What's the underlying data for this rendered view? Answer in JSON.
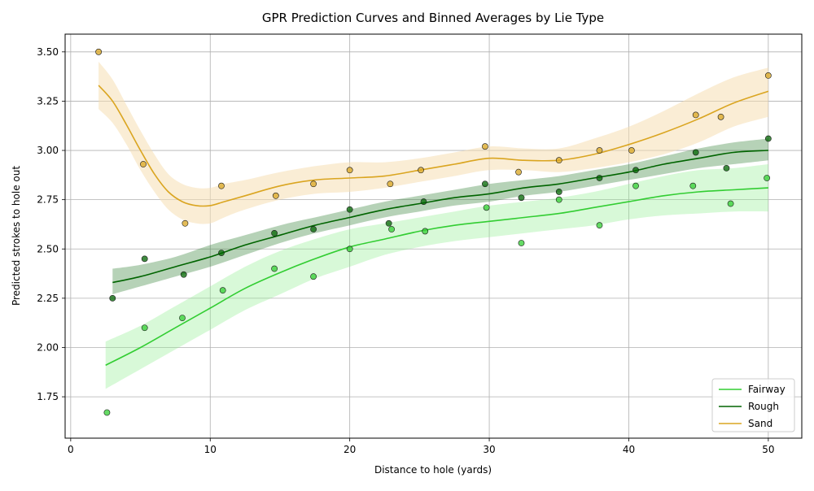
{
  "chart_data": {
    "type": "line",
    "title": "GPR Prediction Curves and Binned Averages by Lie Type",
    "xlabel": "Distance to hole (yards)",
    "ylabel": "Predicted strokes to hole out",
    "xlim": [
      -0.4,
      52.4
    ],
    "ylim": [
      1.54,
      3.59
    ],
    "xticks": [
      0,
      10,
      20,
      30,
      40,
      50
    ],
    "yticks": [
      1.75,
      2.0,
      2.25,
      2.5,
      2.75,
      3.0,
      3.25,
      3.5
    ],
    "grid": true,
    "legend_position": "bottom-right",
    "series": [
      {
        "name": "Fairway",
        "color": "#32cd32",
        "band_color": "#90ee90",
        "curve": {
          "x": [
            2.5,
            5,
            7.5,
            10,
            12.5,
            15,
            17.5,
            20,
            22.5,
            25,
            27.5,
            30,
            32.5,
            35,
            37.5,
            40,
            42.5,
            45,
            47.5,
            50
          ],
          "mean": [
            1.91,
            2.0,
            2.1,
            2.2,
            2.3,
            2.38,
            2.45,
            2.51,
            2.55,
            2.59,
            2.62,
            2.64,
            2.66,
            2.68,
            2.71,
            2.74,
            2.77,
            2.79,
            2.8,
            2.81
          ],
          "lower": [
            1.79,
            1.89,
            1.99,
            2.09,
            2.19,
            2.27,
            2.35,
            2.41,
            2.47,
            2.51,
            2.54,
            2.56,
            2.58,
            2.6,
            2.62,
            2.65,
            2.67,
            2.68,
            2.69,
            2.69
          ],
          "upper": [
            2.03,
            2.11,
            2.21,
            2.31,
            2.41,
            2.49,
            2.55,
            2.6,
            2.63,
            2.66,
            2.69,
            2.72,
            2.74,
            2.76,
            2.79,
            2.83,
            2.87,
            2.9,
            2.91,
            2.93
          ]
        },
        "points": {
          "x": [
            2.6,
            5.3,
            8.0,
            10.9,
            14.6,
            17.4,
            20.0,
            23.0,
            25.4,
            29.8,
            32.3,
            35.0,
            37.9,
            40.5,
            44.6,
            47.3,
            49.9
          ],
          "y": [
            1.67,
            2.1,
            2.15,
            2.29,
            2.4,
            2.36,
            2.5,
            2.6,
            2.59,
            2.71,
            2.53,
            2.75,
            2.62,
            2.82,
            2.82,
            2.73,
            2.86
          ]
        }
      },
      {
        "name": "Rough",
        "color": "#006400",
        "band_color": "#2e7d32",
        "curve": {
          "x": [
            3,
            5,
            7.5,
            10,
            12.5,
            15,
            17.5,
            20,
            22.5,
            25,
            27.5,
            30,
            32.5,
            35,
            37.5,
            40,
            42.5,
            45,
            47.5,
            50
          ],
          "mean": [
            2.33,
            2.36,
            2.41,
            2.46,
            2.52,
            2.57,
            2.62,
            2.66,
            2.7,
            2.73,
            2.76,
            2.78,
            2.81,
            2.83,
            2.86,
            2.89,
            2.93,
            2.96,
            2.99,
            3.0
          ],
          "lower": [
            2.27,
            2.31,
            2.36,
            2.41,
            2.47,
            2.53,
            2.58,
            2.62,
            2.66,
            2.69,
            2.72,
            2.74,
            2.77,
            2.79,
            2.82,
            2.85,
            2.88,
            2.91,
            2.93,
            2.95
          ],
          "upper": [
            2.4,
            2.42,
            2.46,
            2.52,
            2.57,
            2.62,
            2.66,
            2.7,
            2.74,
            2.77,
            2.8,
            2.83,
            2.85,
            2.87,
            2.9,
            2.93,
            2.97,
            3.01,
            3.04,
            3.06
          ]
        },
        "points": {
          "x": [
            3.0,
            5.3,
            8.1,
            10.8,
            14.6,
            17.4,
            20.0,
            22.8,
            25.3,
            29.7,
            32.3,
            35.0,
            37.9,
            40.5,
            44.8,
            47.0,
            50.0
          ],
          "y": [
            2.25,
            2.45,
            2.37,
            2.48,
            2.58,
            2.6,
            2.7,
            2.63,
            2.74,
            2.83,
            2.76,
            2.79,
            2.86,
            2.9,
            2.99,
            2.91,
            3.06
          ]
        }
      },
      {
        "name": "Sand",
        "color": "#daa520",
        "band_color": "#f5deb3",
        "curve": {
          "x": [
            2,
            3,
            4,
            5,
            6,
            7,
            8,
            9,
            10,
            11,
            12.5,
            15,
            17.5,
            20,
            22.5,
            25,
            27.5,
            30,
            32.5,
            35,
            37.5,
            40,
            42.5,
            45,
            47.5,
            50
          ],
          "mean": [
            3.33,
            3.25,
            3.13,
            3.0,
            2.88,
            2.79,
            2.74,
            2.72,
            2.72,
            2.74,
            2.77,
            2.82,
            2.85,
            2.86,
            2.87,
            2.9,
            2.93,
            2.96,
            2.95,
            2.95,
            2.98,
            3.03,
            3.09,
            3.16,
            3.24,
            3.3
          ],
          "lower": [
            3.21,
            3.14,
            3.03,
            2.9,
            2.79,
            2.7,
            2.65,
            2.63,
            2.63,
            2.66,
            2.7,
            2.75,
            2.78,
            2.79,
            2.81,
            2.84,
            2.87,
            2.9,
            2.9,
            2.89,
            2.91,
            2.94,
            2.98,
            3.04,
            3.12,
            3.17
          ],
          "upper": [
            3.45,
            3.36,
            3.23,
            3.1,
            2.98,
            2.88,
            2.83,
            2.81,
            2.81,
            2.83,
            2.85,
            2.89,
            2.92,
            2.94,
            2.94,
            2.96,
            2.99,
            3.02,
            3.01,
            3.01,
            3.06,
            3.12,
            3.2,
            3.29,
            3.37,
            3.42
          ]
        },
        "points": {
          "x": [
            2.0,
            5.2,
            8.2,
            10.8,
            14.7,
            17.4,
            20.0,
            22.9,
            25.1,
            29.7,
            32.1,
            35.0,
            37.9,
            40.2,
            44.8,
            46.6,
            50.0
          ],
          "y": [
            3.5,
            2.93,
            2.63,
            2.82,
            2.77,
            2.83,
            2.9,
            2.83,
            2.9,
            3.02,
            2.89,
            2.95,
            3.0,
            3.0,
            3.18,
            3.17,
            3.38
          ]
        }
      }
    ]
  }
}
